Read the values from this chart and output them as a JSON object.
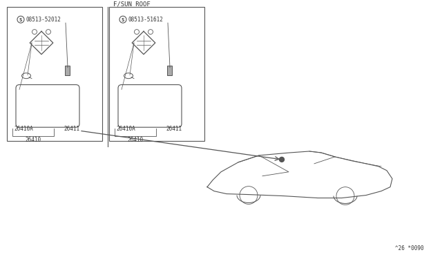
{
  "bg_color": "#ffffff",
  "line_color": "#555555",
  "text_color": "#333333",
  "diagram_code": "^26 *0090",
  "fsun_roof_label": "F/SUN ROOF",
  "left_screw_label": "08513-52012",
  "right_screw_label": "08513-51612",
  "left_part_labels": [
    "26410A",
    "26411",
    "26410"
  ],
  "right_part_labels": [
    "26410A",
    "26411",
    "26410"
  ]
}
